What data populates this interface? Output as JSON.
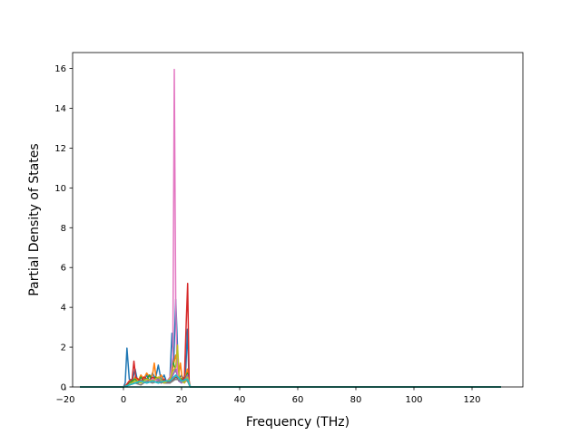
{
  "chart_data": {
    "type": "line",
    "title": "",
    "xlabel": "Frequency (THz)",
    "ylabel": "Partial Density of States",
    "xlim": [
      -17.5,
      137.5
    ],
    "ylim": [
      0,
      16.8
    ],
    "x_ticks": [
      -20,
      0,
      20,
      40,
      60,
      80,
      100,
      120
    ],
    "y_ticks": [
      0,
      2,
      4,
      6,
      8,
      10,
      12,
      14,
      16
    ],
    "grid": false,
    "legend": "none",
    "series": [
      {
        "color": "#1f77b4",
        "x": [
          -15,
          0,
          0.6,
          1.2,
          2,
          3,
          4,
          5,
          6,
          7,
          8,
          9,
          10,
          11,
          12,
          13,
          14,
          15,
          16,
          16.7,
          17.3,
          18,
          19,
          20,
          21,
          21.5,
          22,
          22.6,
          23,
          25,
          40,
          130
        ],
        "y": [
          0,
          0,
          0.2,
          1.95,
          0.4,
          0.3,
          0.9,
          0.2,
          0.5,
          0.3,
          0.6,
          0.3,
          0.7,
          0.4,
          1.1,
          0.3,
          0.6,
          0.2,
          0.5,
          2.7,
          1.2,
          4.4,
          0.4,
          0.6,
          0.3,
          1.0,
          2.9,
          0.2,
          0,
          0,
          0,
          0
        ]
      },
      {
        "color": "#ff7f0e",
        "x": [
          -15,
          0,
          1,
          2,
          3,
          4,
          5,
          6,
          7,
          8,
          9,
          10,
          10.6,
          11.2,
          12,
          13,
          14,
          15,
          16,
          17,
          18,
          19,
          19.6,
          20.2,
          21,
          22,
          22.6,
          23,
          40,
          130
        ],
        "y": [
          0,
          0,
          0.1,
          0.3,
          0.2,
          0.5,
          0.3,
          0.6,
          0.4,
          0.7,
          0.5,
          0.6,
          1.2,
          0.5,
          0.4,
          0.6,
          0.3,
          0.2,
          0.4,
          1.0,
          1.6,
          0.6,
          1.2,
          0.4,
          0.3,
          0.9,
          0.1,
          0,
          0,
          0
        ]
      },
      {
        "color": "#2ca02c",
        "x": [
          -15,
          0,
          1,
          2,
          3,
          4,
          5,
          6,
          7,
          8,
          9,
          10,
          11,
          12,
          13,
          14,
          15,
          16,
          17,
          18,
          19,
          20,
          21,
          22,
          23,
          40,
          130
        ],
        "y": [
          0,
          0,
          0.1,
          0.2,
          0.3,
          0.4,
          0.2,
          0.5,
          0.3,
          0.4,
          0.6,
          0.3,
          0.5,
          0.4,
          0.2,
          0.3,
          0.2,
          0.5,
          1.3,
          0.8,
          0.5,
          0.4,
          0.3,
          0.7,
          0,
          0,
          0
        ]
      },
      {
        "color": "#d62728",
        "x": [
          -15,
          0,
          1,
          2,
          3,
          3.6,
          4.2,
          5,
          6,
          7,
          8,
          9,
          10,
          11,
          12,
          13,
          14,
          15,
          16,
          17,
          18,
          19,
          20,
          21,
          21.6,
          22.1,
          22.6,
          23,
          40,
          130
        ],
        "y": [
          0,
          0,
          0.1,
          0.3,
          0.4,
          1.3,
          0.5,
          0.4,
          0.3,
          0.5,
          0.4,
          0.3,
          0.5,
          0.4,
          0.3,
          0.2,
          0.4,
          0.2,
          0.3,
          0.6,
          0.9,
          0.4,
          0.3,
          0.5,
          3.2,
          5.2,
          0.3,
          0,
          0,
          0
        ]
      },
      {
        "color": "#9467bd",
        "x": [
          -15,
          0,
          2,
          4,
          6,
          8,
          10,
          12,
          14,
          16,
          17,
          18,
          19,
          20,
          21,
          22,
          23,
          40,
          130
        ],
        "y": [
          0,
          0,
          0.1,
          0.2,
          0.3,
          0.2,
          0.3,
          0.4,
          0.2,
          0.2,
          0.6,
          0.9,
          0.3,
          0.2,
          0.3,
          0.6,
          0,
          0,
          0
        ]
      },
      {
        "color": "#8c564b",
        "x": [
          -15,
          0,
          2,
          4,
          6,
          8,
          10,
          12,
          14,
          16,
          18,
          20,
          22,
          23,
          40,
          130
        ],
        "y": [
          0,
          0,
          0.1,
          0.2,
          0.3,
          0.2,
          0.3,
          0.2,
          0.3,
          0.2,
          0.5,
          0.3,
          0.4,
          0,
          0,
          0
        ]
      },
      {
        "color": "#e377c2",
        "x": [
          -15,
          0,
          2,
          4,
          6,
          8,
          10,
          12,
          14,
          15,
          16,
          17,
          17.5,
          18,
          18.5,
          19,
          20,
          21,
          22,
          23,
          40,
          130
        ],
        "y": [
          0,
          0,
          0.1,
          0.2,
          0.3,
          0.2,
          0.4,
          0.3,
          0.2,
          0.3,
          0.5,
          1.5,
          15.95,
          4.2,
          0.8,
          0.4,
          0.3,
          0.2,
          0.4,
          0,
          0,
          0
        ]
      },
      {
        "color": "#7f7f7f",
        "x": [
          -15,
          0,
          2,
          4,
          6,
          8,
          10,
          12,
          14,
          16,
          18,
          20,
          22,
          23,
          40,
          130
        ],
        "y": [
          0,
          0,
          0.1,
          0.2,
          0.1,
          0.3,
          0.2,
          0.3,
          0.2,
          0.2,
          0.4,
          0.3,
          0.3,
          0,
          0,
          0
        ]
      },
      {
        "color": "#bcbd22",
        "x": [
          -15,
          0,
          2,
          4,
          6,
          8,
          10,
          12,
          14,
          16,
          17,
          18,
          18.6,
          19.2,
          20,
          21,
          22,
          23,
          40,
          130
        ],
        "y": [
          0,
          0,
          0.1,
          0.3,
          0.2,
          0.4,
          0.3,
          0.5,
          0.2,
          0.4,
          0.8,
          1.0,
          2.1,
          0.5,
          0.3,
          0.2,
          0.5,
          0,
          0,
          0
        ]
      },
      {
        "color": "#17becf",
        "x": [
          -15,
          0,
          2,
          4,
          6,
          8,
          10,
          12,
          14,
          16,
          18,
          20,
          22,
          23,
          40,
          130
        ],
        "y": [
          0,
          0,
          0.1,
          0.2,
          0.3,
          0.2,
          0.3,
          0.2,
          0.3,
          0.3,
          0.6,
          0.3,
          0.4,
          0,
          0,
          0
        ]
      },
      {
        "color": "#006c66",
        "x": [
          -15,
          0,
          5,
          10,
          15,
          20,
          25,
          40,
          130
        ],
        "y": [
          0,
          0,
          0,
          0,
          0,
          0,
          0,
          0,
          0
        ]
      }
    ]
  }
}
